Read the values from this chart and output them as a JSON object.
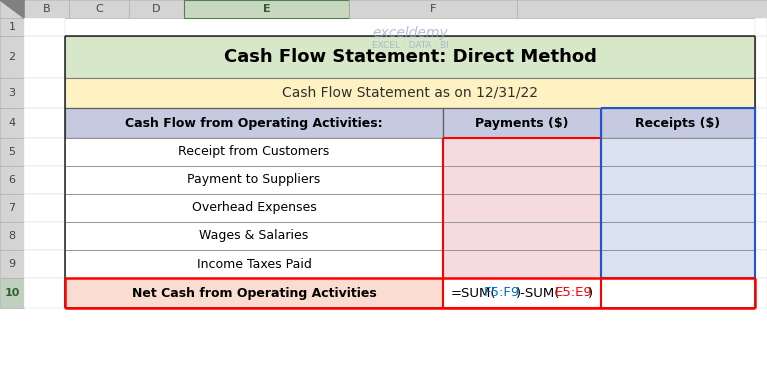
{
  "title": "Cash Flow Statement: Direct Method",
  "subtitle": "Cash Flow Statement as on 12/31/22",
  "col_header": [
    "Cash Flow from Operating Activities:",
    "Payments ($)",
    "Receipts ($)"
  ],
  "rows": [
    "Receipt from Customers",
    "Payment to Suppliers",
    "Overhead Expenses",
    "Wages & Salaries",
    "Income Taxes Paid"
  ],
  "last_row_label": "Net Cash from Operating Activities",
  "formula_colored_parts": [
    {
      "text": "=SUM(",
      "color": "#000000"
    },
    {
      "text": "F5:F9",
      "color": "#0070C0"
    },
    {
      "text": ")-SUM(",
      "color": "#000000"
    },
    {
      "text": "E5:E9",
      "color": "#FF0000"
    },
    {
      "text": ")",
      "color": "#000000"
    }
  ],
  "colors": {
    "title_bg": "#D6E8C8",
    "subtitle_bg": "#FFF2C2",
    "header_bg": "#C5CAE0",
    "data_row_payments_bg": "#F5DAE0",
    "data_row_receipts_bg": "#D8E2F0",
    "last_row_label_bg": "#FADDD0",
    "last_row_formula_bg": "#FFFFFF",
    "red_border": "#FF0000",
    "blue_border": "#2255CC",
    "excel_header_bg": "#D4D4D4",
    "excel_col_E_bg": "#C8D8C0",
    "excel_row10_bg": "#C0D0C0",
    "watermark_color": "#9BAAC8"
  },
  "figsize": [
    7.67,
    3.77
  ],
  "dpi": 100
}
